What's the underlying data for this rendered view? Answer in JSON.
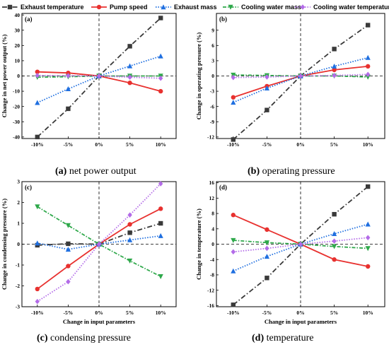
{
  "legend": [
    {
      "label": "Exhaust temperature",
      "color": "#3a3a3a",
      "marker": "square",
      "dash": "dashdot"
    },
    {
      "label": "Pump speed",
      "color": "#e8312f",
      "marker": "circle",
      "dash": "solid"
    },
    {
      "label": "Exhaust mass",
      "color": "#1f6fe0",
      "marker": "triangle-up",
      "dash": "dotted"
    },
    {
      "label": "Cooling water mass",
      "color": "#2ea84a",
      "marker": "triangle-down",
      "dash": "dashdot-fine"
    },
    {
      "label": "Cooling water temperature",
      "color": "#b36be8",
      "marker": "diamond",
      "dash": "dotted"
    }
  ],
  "chart_data": [
    {
      "type": "line",
      "panel_letter": "(a)",
      "caption_letter": "(a)",
      "caption_text": " net power output",
      "xlabel": "",
      "ylabel": "Change in net power output (%)",
      "categories": [
        "-10%",
        "-5%",
        "0%",
        "5%",
        "10%"
      ],
      "ylim": [
        -41,
        41
      ],
      "yticks": [
        -40,
        -30,
        -20,
        -10,
        0,
        10,
        20,
        30,
        40
      ],
      "series": [
        {
          "name": "Exhaust temperature",
          "values": [
            -40,
            -21.5,
            0,
            19.5,
            38
          ]
        },
        {
          "name": "Pump speed",
          "values": [
            2.7,
            2,
            0,
            -4.5,
            -10
          ]
        },
        {
          "name": "Exhaust mass",
          "values": [
            -17.5,
            -8.5,
            0,
            6.5,
            13
          ]
        },
        {
          "name": "Cooling water mass",
          "values": [
            -0.8,
            -0.5,
            0,
            0,
            0
          ]
        },
        {
          "name": "Cooling water temperature",
          "values": [
            0.3,
            0.2,
            0,
            -0.8,
            -1.5
          ]
        }
      ]
    },
    {
      "type": "line",
      "panel_letter": "(b)",
      "caption_letter": "(b)",
      "caption_text": " operating pressure",
      "xlabel": "",
      "ylabel": "Change in operating pressure (%)",
      "categories": [
        "-10%",
        "-5%",
        "0%",
        "5%",
        "10%"
      ],
      "ylim": [
        -12.3,
        12.3
      ],
      "yticks": [
        -12,
        -9,
        -6,
        -3,
        0,
        3,
        6,
        9
      ],
      "series": [
        {
          "name": "Exhaust temperature",
          "values": [
            -12.5,
            -6.7,
            0,
            5.3,
            10
          ]
        },
        {
          "name": "Pump speed",
          "values": [
            -4.2,
            -2,
            0,
            1.2,
            1.9
          ]
        },
        {
          "name": "Exhaust mass",
          "values": [
            -5.2,
            -2.4,
            0,
            1.9,
            3.6
          ]
        },
        {
          "name": "Cooling water mass",
          "values": [
            0.2,
            0.1,
            0,
            0,
            -0.2
          ]
        },
        {
          "name": "Cooling water temperature",
          "values": [
            -0.3,
            -0.2,
            0,
            0.1,
            0.3
          ]
        }
      ]
    },
    {
      "type": "line",
      "panel_letter": "(c)",
      "caption_letter": "(c)",
      "caption_text": " condensing pressure",
      "xlabel": "Change in input parameters",
      "ylabel": "Change in condensing pressure (%)",
      "categories": [
        "-10%",
        "-5%",
        "0%",
        "5%",
        "10%"
      ],
      "ylim": [
        -3,
        3
      ],
      "yticks": [
        -3,
        -2,
        -1,
        0,
        1,
        2,
        3
      ],
      "series": [
        {
          "name": "Exhaust temperature",
          "values": [
            -0.05,
            0.02,
            0,
            0.55,
            1.0
          ]
        },
        {
          "name": "Pump speed",
          "values": [
            -2.15,
            -1.05,
            0,
            0.95,
            1.7
          ]
        },
        {
          "name": "Exhaust mass",
          "values": [
            0.05,
            -0.25,
            0,
            0.2,
            0.4
          ]
        },
        {
          "name": "Cooling water mass",
          "values": [
            1.8,
            0.9,
            0,
            -0.8,
            -1.55
          ]
        },
        {
          "name": "Cooling water temperature",
          "values": [
            -2.75,
            -1.8,
            0,
            1.4,
            2.9
          ]
        }
      ]
    },
    {
      "type": "line",
      "panel_letter": "(d)",
      "caption_letter": "(d)",
      "caption_text": " temperature",
      "xlabel": "Change in input parameters",
      "ylabel": "Change in temperature (%)",
      "categories": [
        "-10%",
        "-5%",
        "0%",
        "5%",
        "10%"
      ],
      "ylim": [
        -16.3,
        16.3
      ],
      "yticks": [
        -16,
        -12,
        -8,
        -4,
        0,
        4,
        8,
        12,
        16
      ],
      "series": [
        {
          "name": "Exhaust temperature",
          "values": [
            -15.8,
            -8.8,
            0,
            7.8,
            15
          ]
        },
        {
          "name": "Pump speed",
          "values": [
            7.6,
            3.8,
            0,
            -4,
            -5.8
          ]
        },
        {
          "name": "Exhaust mass",
          "values": [
            -7,
            -3.2,
            0,
            2.7,
            5.2
          ]
        },
        {
          "name": "Cooling water mass",
          "values": [
            1,
            0.4,
            0,
            -0.6,
            -1.1
          ]
        },
        {
          "name": "Cooling water temperature",
          "values": [
            -2,
            -1.1,
            0,
            0.8,
            1.7
          ]
        }
      ]
    }
  ]
}
